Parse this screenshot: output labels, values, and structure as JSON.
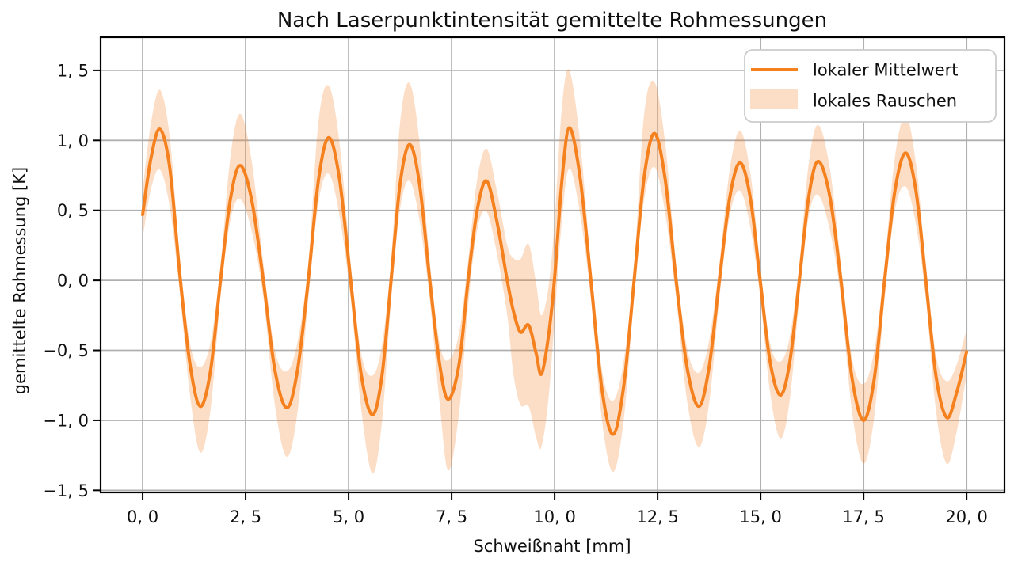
{
  "title": "Nach Laserpunktintensität gemittelte Rohmessungen",
  "axes": {
    "xlabel": "Schweißnaht [mm]",
    "ylabel": "gemittelte Rohmessung [K]"
  },
  "legend": {
    "position": "upper right",
    "items": [
      {
        "label": "lokaler Mittelwert",
        "type": "line"
      },
      {
        "label": "lokales Rauschen",
        "type": "patch"
      }
    ]
  },
  "colors": {
    "line": "#f5801e",
    "band": "rgba(245,125,30,0.25)",
    "grid": "#b0b0b0",
    "spine": "#000000",
    "tick": "#000000",
    "text": "#0f0f0f",
    "legend_border": "#cccccc",
    "background": "#ffffff"
  },
  "chart_data": {
    "type": "line",
    "title": "Nach Laserpunktintensität gemittelte Rohmessungen",
    "xlabel": "Schweißnaht [mm]",
    "ylabel": "gemittelte Rohmessung [K]",
    "grid": true,
    "legend_position": "upper right",
    "xlim": [
      -1.02,
      20.92
    ],
    "ylim": [
      -1.515,
      1.737
    ],
    "x_ticks": {
      "values": [
        0,
        2.5,
        5,
        7.5,
        10,
        12.5,
        15,
        17.5,
        20
      ],
      "labels": [
        "0, 0",
        "2, 5",
        "5, 0",
        "7, 5",
        "10, 0",
        "12, 5",
        "15, 0",
        "17, 5",
        "20, 0"
      ]
    },
    "y_ticks": {
      "values": [
        1.5,
        1.0,
        0.5,
        0.0,
        -0.5,
        -1.0,
        -1.5
      ],
      "labels": [
        "1, 5",
        "1, 0",
        "0, 5",
        "0, 0",
        "−0, 5",
        "−1, 0",
        "−1, 5"
      ]
    },
    "series": [
      {
        "name": "lokaler Mittelwert",
        "type": "line",
        "points": [
          [
            0.0,
            0.47
          ],
          [
            0.2,
            0.87
          ],
          [
            0.42,
            1.08
          ],
          [
            0.66,
            0.8
          ],
          [
            0.9,
            0.05
          ],
          [
            1.15,
            -0.6
          ],
          [
            1.4,
            -0.9
          ],
          [
            1.65,
            -0.64
          ],
          [
            1.89,
            0.0
          ],
          [
            2.13,
            0.58
          ],
          [
            2.37,
            0.82
          ],
          [
            2.65,
            0.57
          ],
          [
            2.93,
            0.0
          ],
          [
            3.21,
            -0.64
          ],
          [
            3.5,
            -0.91
          ],
          [
            3.76,
            -0.64
          ],
          [
            4.02,
            0.0
          ],
          [
            4.27,
            0.72
          ],
          [
            4.52,
            1.02
          ],
          [
            4.78,
            0.72
          ],
          [
            5.05,
            0.0
          ],
          [
            5.31,
            -0.68
          ],
          [
            5.58,
            -0.96
          ],
          [
            5.81,
            -0.68
          ],
          [
            6.03,
            0.0
          ],
          [
            6.25,
            0.69
          ],
          [
            6.48,
            0.97
          ],
          [
            6.72,
            0.69
          ],
          [
            6.97,
            0.0
          ],
          [
            7.21,
            -0.6
          ],
          [
            7.42,
            -0.85
          ],
          [
            7.68,
            -0.6
          ],
          [
            7.9,
            0.0
          ],
          [
            8.12,
            0.5
          ],
          [
            8.35,
            0.71
          ],
          [
            8.6,
            0.42
          ],
          [
            8.85,
            0.0
          ],
          [
            9.0,
            -0.22
          ],
          [
            9.17,
            -0.37
          ],
          [
            9.37,
            -0.32
          ],
          [
            9.55,
            -0.52
          ],
          [
            9.68,
            -0.67
          ],
          [
            9.85,
            -0.4
          ],
          [
            10.0,
            0.02
          ],
          [
            10.18,
            0.72
          ],
          [
            10.36,
            1.09
          ],
          [
            10.62,
            0.73
          ],
          [
            10.88,
            0.0
          ],
          [
            11.15,
            -0.78
          ],
          [
            11.42,
            -1.1
          ],
          [
            11.68,
            -0.75
          ],
          [
            11.93,
            0.0
          ],
          [
            12.17,
            0.73
          ],
          [
            12.42,
            1.05
          ],
          [
            12.68,
            0.73
          ],
          [
            12.95,
            0.0
          ],
          [
            13.22,
            -0.63
          ],
          [
            13.5,
            -0.9
          ],
          [
            13.75,
            -0.62
          ],
          [
            14.0,
            0.0
          ],
          [
            14.25,
            0.59
          ],
          [
            14.5,
            0.84
          ],
          [
            14.75,
            0.59
          ],
          [
            14.99,
            0.0
          ],
          [
            15.23,
            -0.58
          ],
          [
            15.48,
            -0.82
          ],
          [
            15.71,
            -0.58
          ],
          [
            15.94,
            0.0
          ],
          [
            16.17,
            0.6
          ],
          [
            16.4,
            0.85
          ],
          [
            16.68,
            0.6
          ],
          [
            16.95,
            0.0
          ],
          [
            17.22,
            -0.7
          ],
          [
            17.5,
            -1.0
          ],
          [
            17.76,
            -0.7
          ],
          [
            18.01,
            0.0
          ],
          [
            18.26,
            0.64
          ],
          [
            18.52,
            0.91
          ],
          [
            18.77,
            0.64
          ],
          [
            19.01,
            0.0
          ],
          [
            19.26,
            -0.69
          ],
          [
            19.52,
            -0.98
          ],
          [
            19.76,
            -0.8
          ],
          [
            20.0,
            -0.51
          ]
        ]
      },
      {
        "name": "lokales Rauschen",
        "type": "band",
        "points_format": [
          "x",
          "lower",
          "upper"
        ],
        "points": [
          [
            0.0,
            0.3,
            0.64
          ],
          [
            0.2,
            0.65,
            1.12
          ],
          [
            0.42,
            0.79,
            1.36
          ],
          [
            0.66,
            0.52,
            1.02
          ],
          [
            0.9,
            -0.08,
            0.17
          ],
          [
            1.15,
            -0.82,
            -0.45
          ],
          [
            1.4,
            -1.23,
            -0.62
          ],
          [
            1.65,
            -0.92,
            -0.44
          ],
          [
            1.89,
            -0.12,
            0.1
          ],
          [
            2.13,
            0.43,
            0.88
          ],
          [
            2.37,
            0.58,
            1.19
          ],
          [
            2.65,
            0.35,
            0.85
          ],
          [
            2.93,
            -0.12,
            0.12
          ],
          [
            3.21,
            -0.89,
            -0.5
          ],
          [
            3.5,
            -1.26,
            -0.65
          ],
          [
            3.76,
            -0.94,
            -0.44
          ],
          [
            4.02,
            -0.14,
            0.12
          ],
          [
            4.27,
            0.56,
            1.14
          ],
          [
            4.52,
            0.76,
            1.39
          ],
          [
            4.78,
            0.46,
            0.98
          ],
          [
            5.05,
            -0.13,
            0.12
          ],
          [
            5.31,
            -0.93,
            -0.53
          ],
          [
            5.58,
            -1.38,
            -0.68
          ],
          [
            5.81,
            -1.01,
            -0.46
          ],
          [
            6.03,
            -0.15,
            0.14
          ],
          [
            6.25,
            0.51,
            1.13
          ],
          [
            6.48,
            0.71,
            1.41
          ],
          [
            6.72,
            0.43,
            0.99
          ],
          [
            6.97,
            -0.14,
            0.14
          ],
          [
            7.21,
            -0.88,
            -0.45
          ],
          [
            7.42,
            -1.36,
            -0.57
          ],
          [
            7.68,
            -0.95,
            -0.38
          ],
          [
            7.9,
            -0.18,
            0.14
          ],
          [
            8.12,
            0.36,
            0.72
          ],
          [
            8.35,
            0.49,
            0.94
          ],
          [
            8.6,
            0.19,
            0.64
          ],
          [
            8.85,
            -0.25,
            0.25
          ],
          [
            9.0,
            -0.67,
            0.16
          ],
          [
            9.17,
            -0.89,
            0.15
          ],
          [
            9.37,
            -0.9,
            0.26
          ],
          [
            9.55,
            -1.12,
            -0.02
          ],
          [
            9.68,
            -1.19,
            -0.25
          ],
          [
            9.85,
            -0.85,
            -0.05
          ],
          [
            10.0,
            -0.28,
            0.42
          ],
          [
            10.18,
            0.44,
            1.25
          ],
          [
            10.36,
            0.8,
            1.5
          ],
          [
            10.62,
            0.47,
            0.99
          ],
          [
            10.88,
            -0.13,
            0.12
          ],
          [
            11.15,
            -1.0,
            -0.64
          ],
          [
            11.42,
            -1.37,
            -0.86
          ],
          [
            11.68,
            -0.99,
            -0.57
          ],
          [
            11.93,
            -0.12,
            0.11
          ],
          [
            12.17,
            0.57,
            1.18
          ],
          [
            12.42,
            0.81,
            1.42
          ],
          [
            12.68,
            0.49,
            0.99
          ],
          [
            12.95,
            -0.13,
            0.12
          ],
          [
            13.22,
            -0.87,
            -0.49
          ],
          [
            13.5,
            -1.19,
            -0.66
          ],
          [
            13.75,
            -0.88,
            -0.43
          ],
          [
            14.0,
            -0.13,
            0.12
          ],
          [
            14.25,
            0.46,
            0.79
          ],
          [
            14.5,
            0.64,
            1.07
          ],
          [
            14.75,
            0.38,
            0.77
          ],
          [
            14.99,
            -0.12,
            0.11
          ],
          [
            15.23,
            -0.8,
            -0.45
          ],
          [
            15.48,
            -1.13,
            -0.58
          ],
          [
            15.71,
            -0.85,
            -0.4
          ],
          [
            15.94,
            -0.13,
            0.12
          ],
          [
            16.17,
            0.46,
            0.84
          ],
          [
            16.4,
            0.61,
            1.11
          ],
          [
            16.68,
            0.36,
            0.8
          ],
          [
            16.95,
            -0.13,
            0.12
          ],
          [
            17.22,
            -0.94,
            -0.56
          ],
          [
            17.5,
            -1.31,
            -0.74
          ],
          [
            17.76,
            -0.97,
            -0.5
          ],
          [
            18.01,
            -0.13,
            0.12
          ],
          [
            18.26,
            0.5,
            0.88
          ],
          [
            18.52,
            0.67,
            1.18
          ],
          [
            18.77,
            0.4,
            0.84
          ],
          [
            19.01,
            -0.13,
            0.12
          ],
          [
            19.26,
            -0.94,
            -0.54
          ],
          [
            19.52,
            -1.31,
            -0.72
          ],
          [
            19.76,
            -1.08,
            -0.6
          ],
          [
            20.0,
            -0.67,
            -0.35
          ]
        ]
      }
    ]
  }
}
